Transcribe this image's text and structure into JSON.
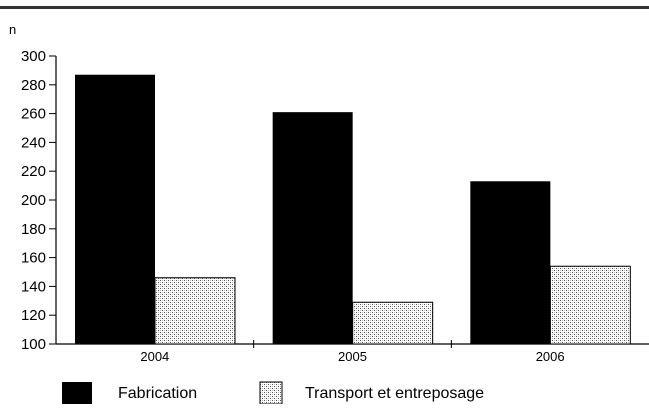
{
  "chart_data": {
    "type": "bar",
    "ylabel": "n",
    "categories": [
      "2004",
      "2005",
      "2006"
    ],
    "series": [
      {
        "name": "Fabrication",
        "values": [
          287,
          261,
          213
        ],
        "color": "#000000"
      },
      {
        "name": "Transport et entreposage",
        "values": [
          146,
          129,
          154
        ],
        "pattern": "dotted-gray"
      }
    ],
    "ylim": [
      100,
      300
    ],
    "yticks": [
      100,
      120,
      140,
      160,
      180,
      200,
      220,
      240,
      260,
      280,
      300
    ],
    "grid": false,
    "legend_position": "bottom"
  }
}
